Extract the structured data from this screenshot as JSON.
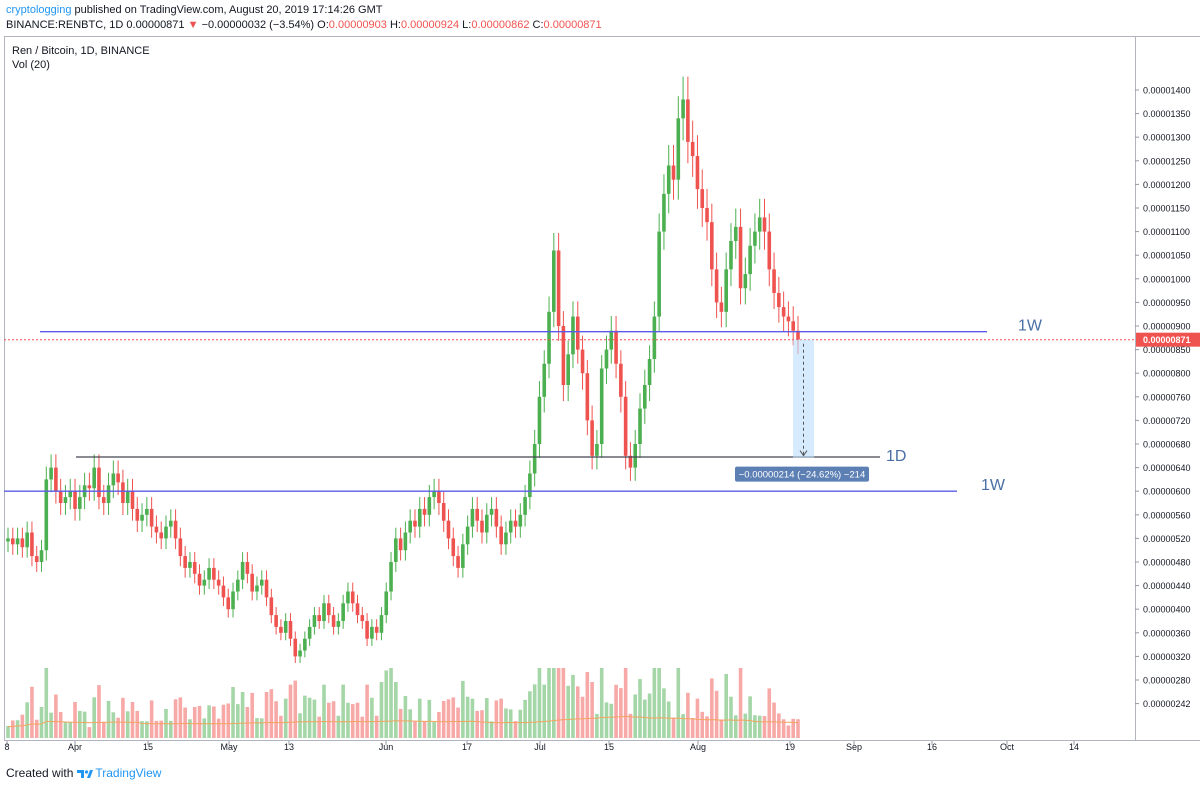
{
  "header": {
    "publisher": "cryptologging",
    "published_text": "published on TradingView.com, August 20, 2019 17:14:26 GMT",
    "symbol": "BINANCE:RENBTC, 1D",
    "last": "0.00000871",
    "change_arrow": "▼",
    "change": "−0.00000032 (−3.54%)",
    "o_label": "O:",
    "o_value": "0.00000903",
    "h_label": "H:",
    "h_value": "0.00000924",
    "l_label": "L:",
    "l_value": "0.00000862",
    "c_label": "C:",
    "c_value": "0.00000871"
  },
  "legend": {
    "title": "Ren / Bitcoin, 1D, BINANCE",
    "volume": "Vol (20)"
  },
  "footer": {
    "created_with": "Created with",
    "brand": "TradingView"
  },
  "colors": {
    "up": "#26a69a",
    "up_candle": "#4caf50",
    "down": "#ef5350",
    "level_line": "#5b5be8",
    "support_line": "#434651",
    "measure_fill": "#bbdefb",
    "measure_label_bg": "#5c7fb4",
    "current_price_line": "#ef5350",
    "volume_up": "#a5d6a7",
    "volume_down": "#f7a9a7",
    "volume_ma": "#f4a460"
  },
  "chart_data": {
    "type": "candlestick",
    "title": "Ren / Bitcoin, 1D, BINANCE",
    "y_axis_ticks": [
      "0.00001400",
      "0.00001350",
      "0.00001300",
      "0.00001250",
      "0.00001200",
      "0.00001150",
      "0.00001100",
      "0.00001050",
      "0.00001000",
      "0.00000950",
      "0.00000900",
      "0.00000850",
      "0.00000800",
      "0.00000760",
      "0.00000720",
      "0.00000680",
      "0.00000640",
      "0.00000600",
      "0.00000560",
      "0.00000520",
      "0.00000480",
      "0.00000440",
      "0.00000400",
      "0.00000360",
      "0.00000320",
      "0.00000280",
      "0.00000242"
    ],
    "x_axis_ticks": [
      "8",
      "Apr",
      "15",
      "May",
      "13",
      "Jun",
      "17",
      "Jul",
      "15",
      "Aug",
      "19",
      "Sep",
      "16",
      "Oct",
      "14"
    ],
    "current_price_label": "0.00000871",
    "horizontal_levels": [
      {
        "label": "1W",
        "price": 8.88e-06
      },
      {
        "label": "1D",
        "price": 6.58e-06
      },
      {
        "label": "1W",
        "price": 6e-06
      }
    ],
    "measurement": {
      "label": "−0.00000214 (−24.62%) −214",
      "from": 8.71e-06,
      "to": 6.57e-06
    },
    "series": [
      {
        "name": "RENBTC daily closes (approx.)",
        "start": "2019-03-08",
        "closes": [
          5.2e-06,
          5.1e-06,
          5.2e-06,
          5.05e-06,
          5.3e-06,
          4.9e-06,
          4.8e-06,
          5e-06,
          6.2e-06,
          6.4e-06,
          6e-06,
          5.8e-06,
          5.9e-06,
          6e-06,
          5.7e-06,
          5.9e-06,
          6.1e-06,
          6.05e-06,
          6.4e-06,
          5.9e-06,
          5.8e-06,
          6.1e-06,
          6.3e-06,
          6.15e-06,
          5.8e-06,
          6e-06,
          5.7e-06,
          5.5e-06,
          5.6e-06,
          5.7e-06,
          5.4e-06,
          5.3e-06,
          5.2e-06,
          5.4e-06,
          5.5e-06,
          5.2e-06,
          4.9e-06,
          4.7e-06,
          4.8e-06,
          4.6e-06,
          4.4e-06,
          4.5e-06,
          4.7e-06,
          4.5e-06,
          4.4e-06,
          4.2e-06,
          4e-06,
          4.3e-06,
          4.5e-06,
          4.8e-06,
          4.6e-06,
          4.3e-06,
          4.4e-06,
          4.5e-06,
          4.2e-06,
          3.9e-06,
          3.7e-06,
          3.6e-06,
          3.8e-06,
          3.5e-06,
          3.2e-06,
          3.3e-06,
          3.5e-06,
          3.7e-06,
          3.9e-06,
          3.8e-06,
          4.1e-06,
          3.9e-06,
          3.7e-06,
          3.8e-06,
          4.1e-06,
          4.3e-06,
          4.1e-06,
          3.9e-06,
          3.8e-06,
          3.5e-06,
          3.7e-06,
          3.6e-06,
          3.9e-06,
          4.3e-06,
          4.8e-06,
          5.2e-06,
          5e-06,
          5.3e-06,
          5.5e-06,
          5.4e-06,
          5.7e-06,
          5.6e-06,
          5.9e-06,
          6e-06,
          5.8e-06,
          5.5e-06,
          5.2e-06,
          4.9e-06,
          4.7e-06,
          5.1e-06,
          5.4e-06,
          5.7e-06,
          5.5e-06,
          5.3e-06,
          5.6e-06,
          5.7e-06,
          5.4e-06,
          5.1e-06,
          5.3e-06,
          5.5e-06,
          5.4e-06,
          5.6e-06,
          5.9e-06,
          6.3e-06,
          6.8e-06,
          7.6e-06,
          8.2e-06,
          9.3e-06,
          1.06e-05,
          9e-06,
          7.8e-06,
          8.4e-06,
          9.2e-06,
          8.5e-06,
          8e-06,
          7.2e-06,
          6.6e-06,
          6.8e-06,
          8.1e-06,
          8.5e-06,
          8.9e-06,
          8.2e-06,
          7.6e-06,
          6.6e-06,
          6.4e-06,
          6.8e-06,
          7.4e-06,
          7.8e-06,
          8.3e-06,
          9.2e-06,
          1.1e-05,
          1.18e-05,
          1.24e-05,
          1.21e-05,
          1.34e-05,
          1.38e-05,
          1.29e-05,
          1.26e-05,
          1.19e-05,
          1.15e-05,
          1.12e-05,
          1.02e-05,
          9.5e-06,
          9.3e-06,
          1.02e-05,
          1.08e-05,
          1.11e-05,
          9.8e-06,
          1.01e-05,
          1.07e-05,
          1.1e-05,
          1.13e-05,
          1.1e-05,
          1.02e-05,
          9.7e-06,
          9.4e-06,
          9.2e-06,
          9.1e-06,
          8.9e-06,
          8.71e-06
        ]
      }
    ],
    "volume_series": {
      "name": "Vol (20)"
    }
  }
}
